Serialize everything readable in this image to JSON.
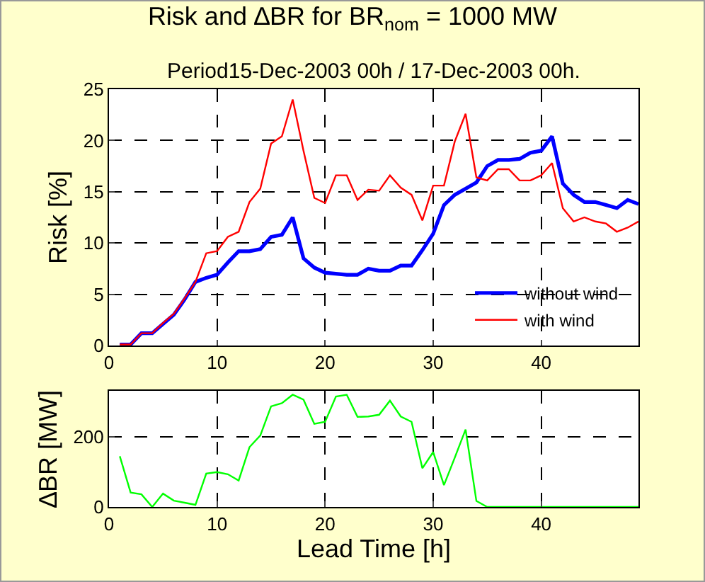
{
  "chart_data": [
    {
      "type": "line",
      "title": "Risk and ∆BR for BR$_{nom}$ = 1000 MW",
      "subtitle": "Period15-Dec-2003 00h / 17-Dec-2003 00h.",
      "ylabel": "Risk [%]",
      "x": [
        1,
        2,
        3,
        4,
        5,
        6,
        7,
        8,
        9,
        10,
        11,
        12,
        13,
        14,
        15,
        16,
        17,
        18,
        19,
        20,
        21,
        22,
        23,
        24,
        25,
        26,
        27,
        28,
        29,
        30,
        31,
        32,
        33,
        34,
        35,
        36,
        37,
        38,
        39,
        40,
        41,
        42,
        43,
        44,
        45,
        46,
        47,
        48,
        49
      ],
      "series": [
        {
          "name": "without wind",
          "color": "#0000ff",
          "values": [
            0.1,
            0.1,
            1.2,
            1.2,
            2.1,
            3.0,
            4.5,
            6.2,
            6.6,
            6.9,
            8.1,
            9.2,
            9.2,
            9.4,
            10.6,
            10.8,
            12.5,
            8.5,
            7.6,
            7.1,
            7.0,
            6.9,
            6.9,
            7.5,
            7.3,
            7.3,
            7.8,
            7.8,
            9.3,
            10.9,
            13.7,
            14.7,
            15.3,
            15.9,
            17.5,
            18.1,
            18.1,
            18.2,
            18.8,
            19.0,
            20.4,
            15.8,
            14.7,
            14.0,
            14.0,
            13.7,
            13.4,
            14.2,
            13.8
          ]
        },
        {
          "name": "with wind",
          "color": "#ff0000",
          "values": [
            0.1,
            0.1,
            1.2,
            1.2,
            2.2,
            3.1,
            4.6,
            6.2,
            9.0,
            9.2,
            10.6,
            11.1,
            14.0,
            15.3,
            19.7,
            20.4,
            24.0,
            19.0,
            14.4,
            13.9,
            16.6,
            16.6,
            14.2,
            15.2,
            15.1,
            16.6,
            15.4,
            14.7,
            12.2,
            15.6,
            15.6,
            19.9,
            22.6,
            16.4,
            16.1,
            17.2,
            17.2,
            16.1,
            16.1,
            16.6,
            17.8,
            13.4,
            12.1,
            12.5,
            12.1,
            11.9,
            11.1,
            11.5,
            12.1
          ]
        }
      ],
      "xlim": [
        0,
        49
      ],
      "xticks": [
        0,
        10,
        20,
        30,
        40
      ],
      "ylim": [
        0,
        25
      ],
      "yticks": [
        0,
        5,
        10,
        15,
        20,
        25
      ],
      "grid": true,
      "legend": "bottom right",
      "line_style": "solid"
    },
    {
      "type": "line",
      "xlabel": "Lead Time [h]",
      "ylabel": "∆BR [MW]",
      "x": [
        1,
        2,
        3,
        4,
        5,
        6,
        7,
        8,
        9,
        10,
        11,
        12,
        13,
        14,
        15,
        16,
        17,
        18,
        19,
        20,
        21,
        22,
        23,
        24,
        25,
        26,
        27,
        28,
        29,
        30,
        31,
        32,
        33,
        34,
        35,
        36,
        37,
        38,
        39,
        40,
        41,
        42,
        43,
        44,
        45,
        46,
        47,
        48,
        49
      ],
      "series": [
        {
          "color": "#00ff00",
          "values": [
            144,
            41,
            36,
            0,
            38,
            18,
            12,
            6,
            95,
            99,
            93,
            75,
            170,
            203,
            286,
            295,
            319,
            305,
            236,
            242,
            314,
            319,
            256,
            257,
            262,
            302,
            257,
            242,
            110,
            156,
            62,
            140,
            220,
            17,
            0,
            0,
            0,
            0,
            0,
            0,
            0,
            0,
            0,
            0,
            0,
            0,
            0,
            0,
            0
          ]
        }
      ],
      "xlim": [
        0,
        49
      ],
      "xticks": [
        0,
        10,
        20,
        30,
        40
      ],
      "ylim": [
        0,
        330
      ],
      "yticks": [
        0,
        200
      ],
      "grid": true,
      "line_style": "solid"
    }
  ]
}
